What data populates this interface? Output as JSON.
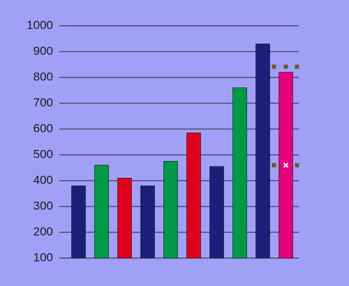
{
  "chart_data": {
    "type": "bar",
    "categories": [
      null,
      null,
      null,
      null,
      null,
      null,
      null,
      null,
      null,
      null
    ],
    "values": [
      380,
      460,
      410,
      380,
      475,
      585,
      455,
      760,
      930,
      820
    ],
    "colors": [
      "#1c1f7a",
      "#009944",
      "#e0001b",
      "#1c1f7a",
      "#009944",
      "#e0001b",
      "#1c1f7a",
      "#009944",
      "#1c1f7a",
      "#e8007a"
    ],
    "ylim": [
      100,
      1000
    ],
    "yticks": [
      100,
      200,
      300,
      400,
      500,
      600,
      700,
      800,
      900,
      1000
    ],
    "grid": true
  }
}
